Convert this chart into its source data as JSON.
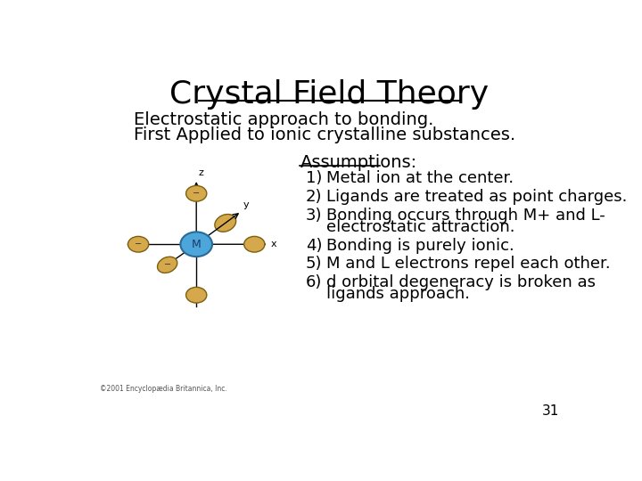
{
  "title": "Crystal Field Theory",
  "subtitle_lines": [
    "Electrostatic approach to bonding.",
    "First Applied to ionic crystalline substances."
  ],
  "assumptions_header": "Assumptions:",
  "assumptions": [
    "Metal ion at the center.",
    "Ligands are treated as point charges.",
    "Bonding occurs through M+ and L-|electrostatic attraction.",
    "Bonding is purely ionic.",
    "M and L electrons repel each other.",
    "d orbital degeneracy is broken as|ligands approach."
  ],
  "page_number": "31",
  "copyright": "©2001 Encyclopædia Britannica, Inc.",
  "background_color": "#ffffff",
  "text_color": "#000000",
  "title_fontsize": 26,
  "subtitle_fontsize": 14,
  "assumptions_fontsize": 13,
  "metal_color": "#4da6d9",
  "ligand_color": "#d4a84b"
}
